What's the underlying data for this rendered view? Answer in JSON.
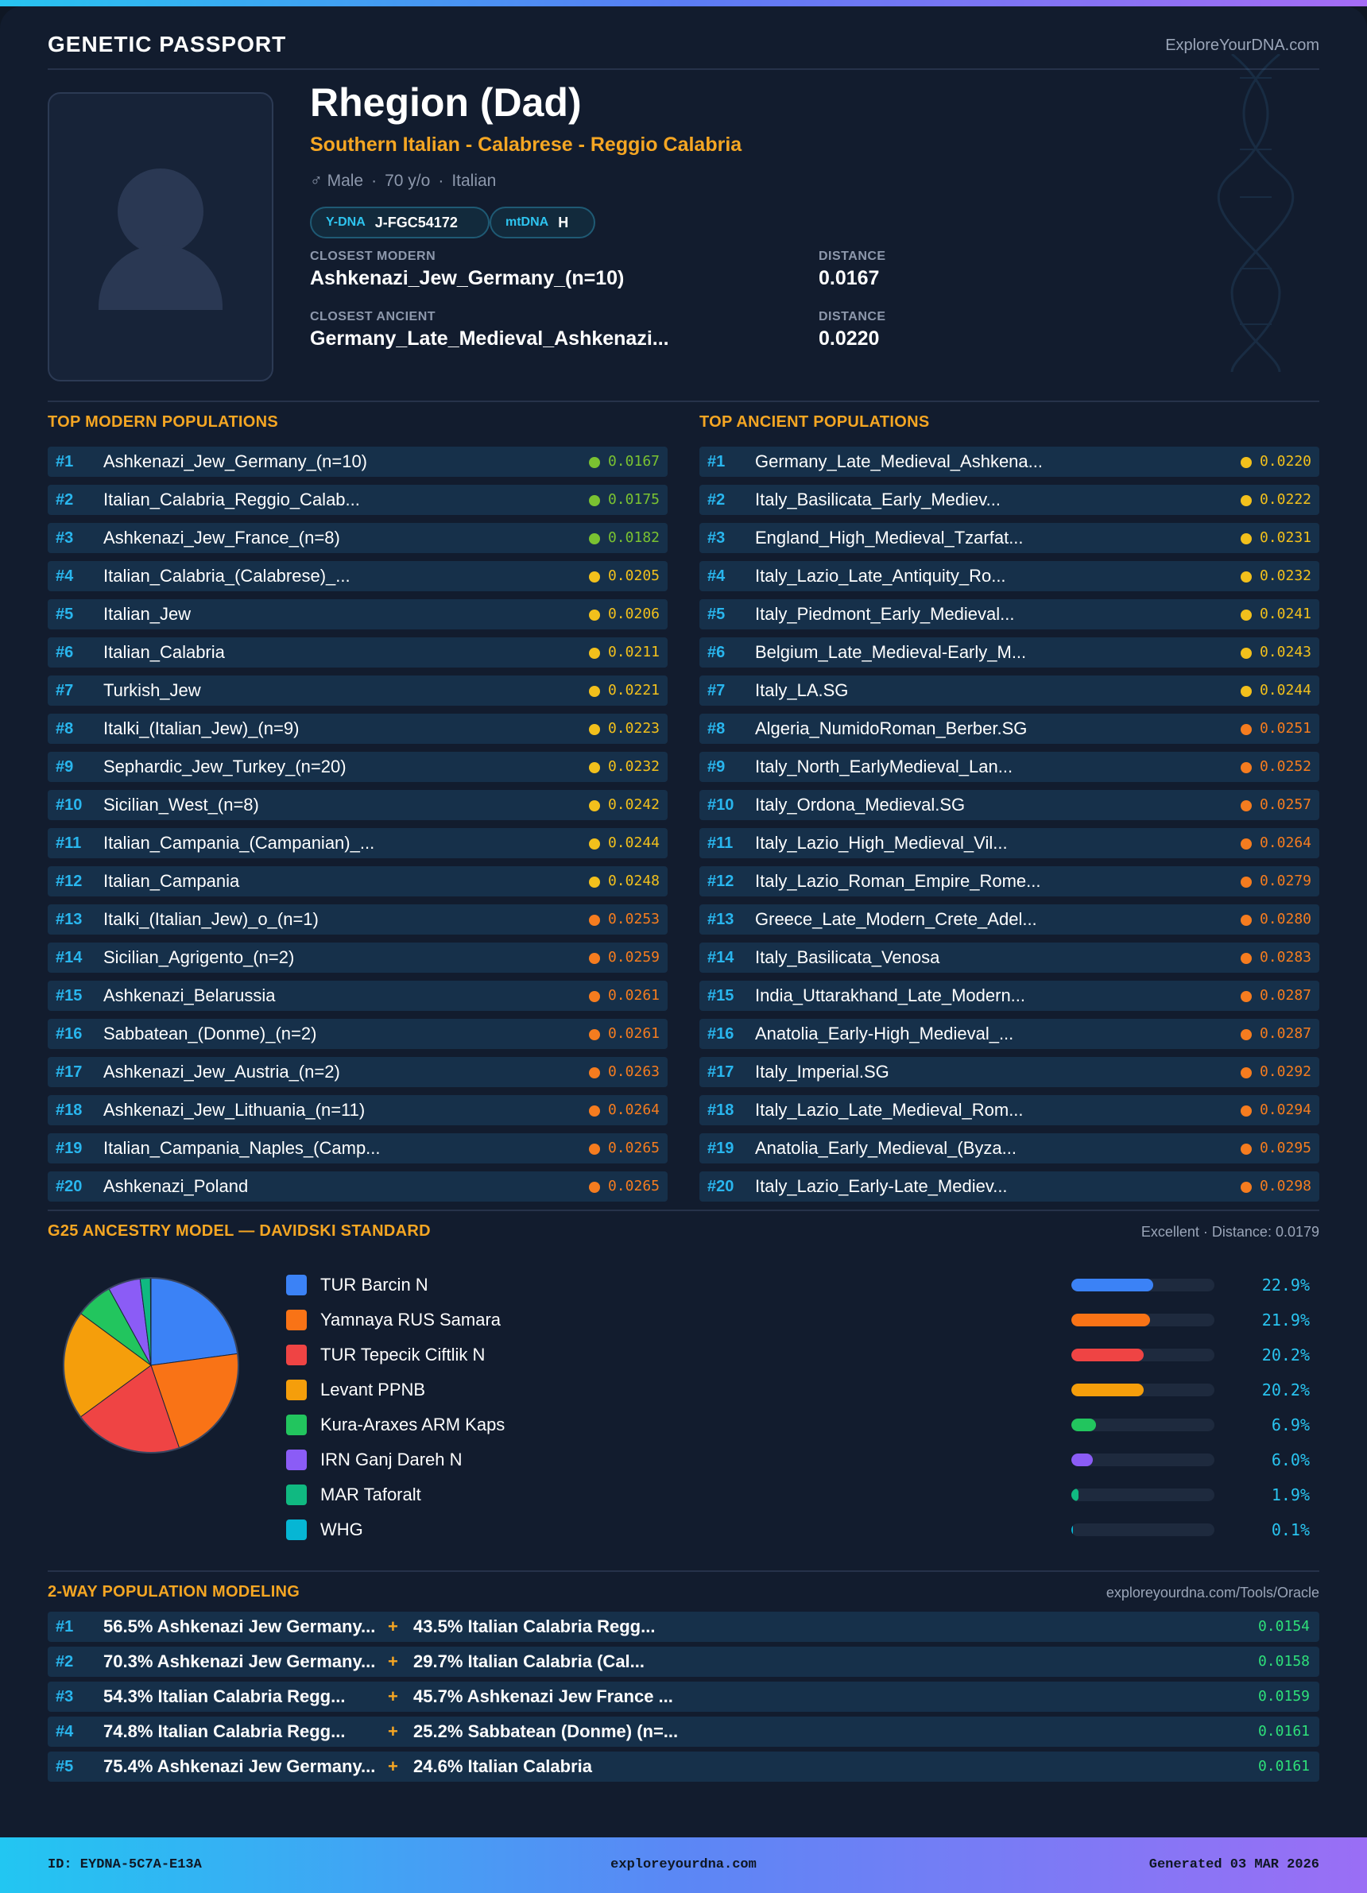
{
  "header": {
    "title": "GENETIC PASSPORT",
    "site": "ExploreYourDNA.com"
  },
  "profile": {
    "name": "Rhegion (Dad)",
    "subtitle": "Southern Italian - Calabrese - Reggio Calabria",
    "gender_icon": "male-icon",
    "gender": "♂ Male",
    "age": "70 y/o",
    "ethnicity": "Italian",
    "ydna_label": "Y-DNA",
    "ydna": "J-FGC54172",
    "mtdna_label": "mtDNA",
    "mtdna": "H",
    "closest_modern_label": "CLOSEST MODERN",
    "closest_modern": "Ashkenazi_Jew_Germany_(n=10)",
    "closest_modern_dist_label": "DISTANCE",
    "closest_modern_dist": "0.0167",
    "closest_ancient_label": "CLOSEST ANCIENT",
    "closest_ancient": "Germany_Late_Medieval_Ashkenazi...",
    "closest_ancient_dist_label": "DISTANCE",
    "closest_ancient_dist": "0.0220"
  },
  "modern": {
    "title": "TOP MODERN POPULATIONS",
    "rows": [
      {
        "rank": "#1",
        "name": "Ashkenazi_Jew_Germany_(n=10)",
        "dist": "0.0167",
        "color": "#7ac231"
      },
      {
        "rank": "#2",
        "name": "Italian_Calabria_Reggio_Calab...",
        "dist": "0.0175",
        "color": "#7ac231"
      },
      {
        "rank": "#3",
        "name": "Ashkenazi_Jew_France_(n=8)",
        "dist": "0.0182",
        "color": "#7ac231"
      },
      {
        "rank": "#4",
        "name": "Italian_Calabria_(Calabrese)_...",
        "dist": "0.0205",
        "color": "#f2c01c"
      },
      {
        "rank": "#5",
        "name": "Italian_Jew",
        "dist": "0.0206",
        "color": "#f2c01c"
      },
      {
        "rank": "#6",
        "name": "Italian_Calabria",
        "dist": "0.0211",
        "color": "#f2c01c"
      },
      {
        "rank": "#7",
        "name": "Turkish_Jew",
        "dist": "0.0221",
        "color": "#f2c01c"
      },
      {
        "rank": "#8",
        "name": "Italki_(Italian_Jew)_(n=9)",
        "dist": "0.0223",
        "color": "#f2c01c"
      },
      {
        "rank": "#9",
        "name": "Sephardic_Jew_Turkey_(n=20)",
        "dist": "0.0232",
        "color": "#f2c01c"
      },
      {
        "rank": "#10",
        "name": "Sicilian_West_(n=8)",
        "dist": "0.0242",
        "color": "#f2c01c"
      },
      {
        "rank": "#11",
        "name": "Italian_Campania_(Campanian)_...",
        "dist": "0.0244",
        "color": "#f2c01c"
      },
      {
        "rank": "#12",
        "name": "Italian_Campania",
        "dist": "0.0248",
        "color": "#f2c01c"
      },
      {
        "rank": "#13",
        "name": "Italki_(Italian_Jew)_o_(n=1)",
        "dist": "0.0253",
        "color": "#f57c1f"
      },
      {
        "rank": "#14",
        "name": "Sicilian_Agrigento_(n=2)",
        "dist": "0.0259",
        "color": "#f57c1f"
      },
      {
        "rank": "#15",
        "name": "Ashkenazi_Belarussia",
        "dist": "0.0261",
        "color": "#f57c1f"
      },
      {
        "rank": "#16",
        "name": "Sabbatean_(Donme)_(n=2)",
        "dist": "0.0261",
        "color": "#f57c1f"
      },
      {
        "rank": "#17",
        "name": "Ashkenazi_Jew_Austria_(n=2)",
        "dist": "0.0263",
        "color": "#f57c1f"
      },
      {
        "rank": "#18",
        "name": "Ashkenazi_Jew_Lithuania_(n=11)",
        "dist": "0.0264",
        "color": "#f57c1f"
      },
      {
        "rank": "#19",
        "name": "Italian_Campania_Naples_(Camp...",
        "dist": "0.0265",
        "color": "#f57c1f"
      },
      {
        "rank": "#20",
        "name": "Ashkenazi_Poland",
        "dist": "0.0265",
        "color": "#f57c1f"
      }
    ]
  },
  "ancient": {
    "title": "TOP ANCIENT POPULATIONS",
    "rows": [
      {
        "rank": "#1",
        "name": "Germany_Late_Medieval_Ashkena...",
        "dist": "0.0220",
        "color": "#f2c01c"
      },
      {
        "rank": "#2",
        "name": "Italy_Basilicata_Early_Mediev...",
        "dist": "0.0222",
        "color": "#f2c01c"
      },
      {
        "rank": "#3",
        "name": "England_High_Medieval_Tzarfat...",
        "dist": "0.0231",
        "color": "#f2c01c"
      },
      {
        "rank": "#4",
        "name": "Italy_Lazio_Late_Antiquity_Ro...",
        "dist": "0.0232",
        "color": "#f2c01c"
      },
      {
        "rank": "#5",
        "name": "Italy_Piedmont_Early_Medieval...",
        "dist": "0.0241",
        "color": "#f2c01c"
      },
      {
        "rank": "#6",
        "name": "Belgium_Late_Medieval-Early_M...",
        "dist": "0.0243",
        "color": "#f2c01c"
      },
      {
        "rank": "#7",
        "name": "Italy_LA.SG",
        "dist": "0.0244",
        "color": "#f2c01c"
      },
      {
        "rank": "#8",
        "name": "Algeria_NumidoRoman_Berber.SG",
        "dist": "0.0251",
        "color": "#f57c1f"
      },
      {
        "rank": "#9",
        "name": "Italy_North_EarlyMedieval_Lan...",
        "dist": "0.0252",
        "color": "#f57c1f"
      },
      {
        "rank": "#10",
        "name": "Italy_Ordona_Medieval.SG",
        "dist": "0.0257",
        "color": "#f57c1f"
      },
      {
        "rank": "#11",
        "name": "Italy_Lazio_High_Medieval_Vil...",
        "dist": "0.0264",
        "color": "#f57c1f"
      },
      {
        "rank": "#12",
        "name": "Italy_Lazio_Roman_Empire_Rome...",
        "dist": "0.0279",
        "color": "#f57c1f"
      },
      {
        "rank": "#13",
        "name": "Greece_Late_Modern_Crete_Adel...",
        "dist": "0.0280",
        "color": "#f57c1f"
      },
      {
        "rank": "#14",
        "name": "Italy_Basilicata_Venosa",
        "dist": "0.0283",
        "color": "#f57c1f"
      },
      {
        "rank": "#15",
        "name": "India_Uttarakhand_Late_Modern...",
        "dist": "0.0287",
        "color": "#f57c1f"
      },
      {
        "rank": "#16",
        "name": "Anatolia_Early-High_Medieval_...",
        "dist": "0.0287",
        "color": "#f57c1f"
      },
      {
        "rank": "#17",
        "name": "Italy_Imperial.SG",
        "dist": "0.0292",
        "color": "#f57c1f"
      },
      {
        "rank": "#18",
        "name": "Italy_Lazio_Late_Medieval_Rom...",
        "dist": "0.0294",
        "color": "#f57c1f"
      },
      {
        "rank": "#19",
        "name": "Anatolia_Early_Medieval_(Byza...",
        "dist": "0.0295",
        "color": "#f57c1f"
      },
      {
        "rank": "#20",
        "name": "Italy_Lazio_Early-Late_Mediev...",
        "dist": "0.0298",
        "color": "#f57c1f"
      }
    ]
  },
  "g25": {
    "title": "G25 ANCESTRY MODEL — DAVIDSKI STANDARD",
    "fit": "Excellent · Distance: 0.0179"
  },
  "chart_data": {
    "type": "pie",
    "categories": [
      "TUR Barcin N",
      "Yamnaya RUS Samara",
      "TUR Tepecik Ciftlik N",
      "Levant PPNB",
      "Kura-Araxes ARM Kaps",
      "IRN Ganj Dareh N",
      "MAR Taforalt",
      "WHG"
    ],
    "values": [
      22.9,
      21.9,
      20.2,
      20.2,
      6.9,
      6.0,
      1.9,
      0.1
    ],
    "labels": [
      "22.9%",
      "21.9%",
      "20.2%",
      "20.2%",
      "6.9%",
      "6.0%",
      "1.9%",
      "0.1%"
    ],
    "colors": [
      "#3b82f6",
      "#f97316",
      "#ef4444",
      "#f59e0b",
      "#22c55e",
      "#8b5cf6",
      "#10b981",
      "#06b6d4"
    ]
  },
  "twoway": {
    "title": "2-WAY POPULATION MODELING",
    "source": "exploreyourdna.com/Tools/Oracle",
    "rows": [
      {
        "rank": "#1",
        "a": "56.5% Ashkenazi Jew Germany...",
        "b": "43.5% Italian Calabria Regg...",
        "dist": "0.0154"
      },
      {
        "rank": "#2",
        "a": "70.3% Ashkenazi Jew Germany...",
        "b": "29.7% Italian Calabria (Cal...",
        "dist": "0.0158"
      },
      {
        "rank": "#3",
        "a": "54.3% Italian Calabria Regg...",
        "b": "45.7% Ashkenazi Jew France ...",
        "dist": "0.0159"
      },
      {
        "rank": "#4",
        "a": "74.8% Italian Calabria Regg...",
        "b": "25.2% Sabbatean (Donme) (n=...",
        "dist": "0.0161"
      },
      {
        "rank": "#5",
        "a": "75.4% Ashkenazi Jew Germany...",
        "b": "24.6% Italian Calabria",
        "dist": "0.0161"
      }
    ]
  },
  "footer": {
    "id": "ID: EYDNA-5C7A-E13A",
    "site": "exploreyourdna.com",
    "generated": "Generated 03 MAR 2026"
  }
}
